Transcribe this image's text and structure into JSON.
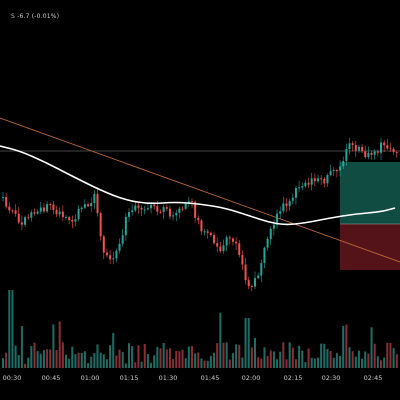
{
  "header": {
    "symbol_tail": "S",
    "change": "-6.7 (-0.01%)"
  },
  "colors": {
    "background": "#000000",
    "up": "#26a69a",
    "down": "#ef5350",
    "volume_up": "#1f6e66",
    "volume_down": "#8a2f37",
    "moving_average": "#ffffff",
    "trendline": "#c0683a",
    "level_line": "#5a5a5a",
    "profit_zone": "#1e8a78",
    "loss_zone": "#8c1f2a",
    "axis_text": "#cfcfcf"
  },
  "chart_data": {
    "type": "candlestick",
    "time_axis_labels": [
      "00:30",
      "00:45",
      "01:00",
      "01:15",
      "01:30",
      "01:45",
      "02:00",
      "02:15",
      "02:30",
      "02:45"
    ],
    "indicators": [
      "moving-average",
      "trendline",
      "horizontal-level",
      "long-position-tool",
      "volume"
    ]
  }
}
